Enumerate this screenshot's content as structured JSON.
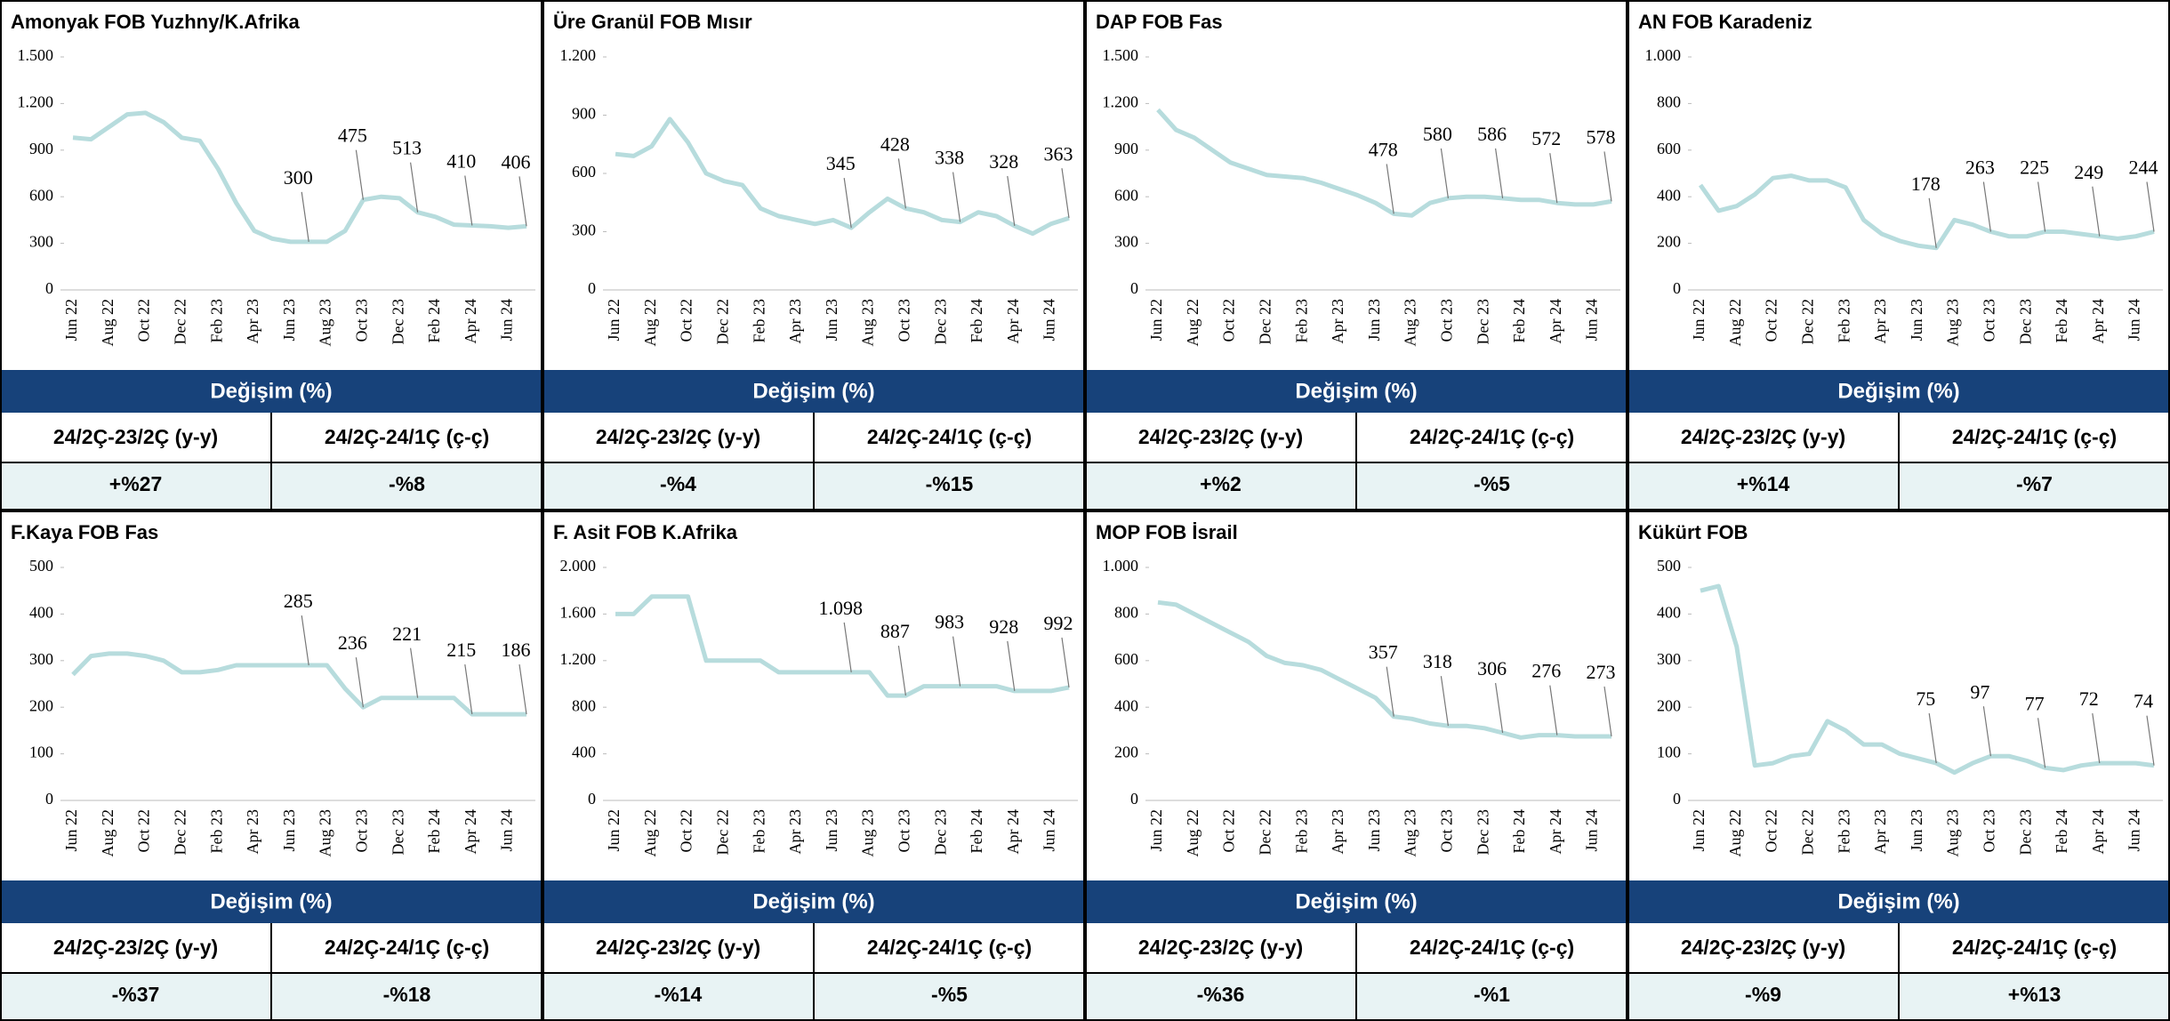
{
  "chart_data": [
    {
      "type": "line",
      "title": "Amonyak FOB Yuzhny/K.Afrika",
      "color": "#b7dcdd",
      "categories": [
        "Jun 22",
        null,
        "Aug 22",
        null,
        "Oct 22",
        null,
        "Dec 22",
        null,
        "Feb 23",
        null,
        "Apr 23",
        null,
        "Jun 23",
        null,
        "Aug 23",
        null,
        "Oct 23",
        null,
        "Dec 23",
        null,
        "Feb 24",
        null,
        "Apr 24",
        null,
        "Jun 24",
        null
      ],
      "values": [
        980,
        970,
        1050,
        1130,
        1140,
        1080,
        980,
        960,
        780,
        560,
        380,
        330,
        310,
        310,
        310,
        380,
        580,
        600,
        590,
        500,
        470,
        420,
        415,
        410,
        400,
        410
      ],
      "ylim": [
        0,
        1500
      ],
      "yticks": [
        0,
        300,
        600,
        900,
        {
          "value": 1200,
          "label": "1.200"
        },
        {
          "value": 1500,
          "label": "1.500"
        }
      ],
      "annotations": [
        "300",
        "475",
        "513",
        "410",
        "406"
      ],
      "table": {
        "header": "Değişim (%)",
        "columns": [
          "24/2Ç-23/2Ç (y-y)",
          "24/2Ç-24/1Ç (ç-ç)"
        ],
        "values": [
          "+%27",
          "-%8"
        ]
      }
    },
    {
      "type": "line",
      "title": "Üre Granül FOB Mısır",
      "color": "#b7dcdd",
      "categories": [
        "Jun 22",
        null,
        "Aug 22",
        null,
        "Oct 22",
        null,
        "Dec 22",
        null,
        "Feb 23",
        null,
        "Apr 23",
        null,
        "Jun 23",
        null,
        "Aug 23",
        null,
        "Oct 23",
        null,
        "Dec 23",
        null,
        "Feb 24",
        null,
        "Apr 24",
        null,
        "Jun 24",
        null
      ],
      "values": [
        700,
        690,
        740,
        880,
        760,
        600,
        560,
        540,
        420,
        380,
        360,
        340,
        360,
        320,
        400,
        470,
        420,
        400,
        360,
        350,
        400,
        380,
        330,
        290,
        340,
        370
      ],
      "ylim": [
        0,
        1200
      ],
      "yticks": [
        0,
        300,
        600,
        900,
        {
          "value": 1200,
          "label": "1.200"
        }
      ],
      "annotations": [
        "345",
        "428",
        "338",
        "328",
        "363"
      ],
      "table": {
        "header": "Değişim (%)",
        "columns": [
          "24/2Ç-23/2Ç (y-y)",
          "24/2Ç-24/1Ç (ç-ç)"
        ],
        "values": [
          "-%4",
          "-%15"
        ]
      }
    },
    {
      "type": "line",
      "title": "DAP FOB Fas",
      "color": "#b7dcdd",
      "categories": [
        "Jun 22",
        null,
        "Aug 22",
        null,
        "Oct 22",
        null,
        "Dec 22",
        null,
        "Feb 23",
        null,
        "Apr 23",
        null,
        "Jun 23",
        null,
        "Aug 23",
        null,
        "Oct 23",
        null,
        "Dec 23",
        null,
        "Feb 24",
        null,
        "Apr 24",
        null,
        "Jun 24",
        null
      ],
      "values": [
        1160,
        1030,
        980,
        900,
        820,
        780,
        740,
        730,
        720,
        690,
        650,
        610,
        560,
        490,
        480,
        560,
        590,
        600,
        600,
        590,
        580,
        580,
        560,
        550,
        550,
        570
      ],
      "ylim": [
        0,
        1500
      ],
      "yticks": [
        0,
        300,
        600,
        900,
        {
          "value": 1200,
          "label": "1.200"
        },
        {
          "value": 1500,
          "label": "1.500"
        }
      ],
      "annotations": [
        "478",
        "580",
        "586",
        "572",
        "578"
      ],
      "table": {
        "header": "Değişim (%)",
        "columns": [
          "24/2Ç-23/2Ç (y-y)",
          "24/2Ç-24/1Ç (ç-ç)"
        ],
        "values": [
          "+%2",
          "-%5"
        ]
      }
    },
    {
      "type": "line",
      "title": "AN FOB Karadeniz",
      "color": "#b7dcdd",
      "categories": [
        "Jun 22",
        null,
        "Aug 22",
        null,
        "Oct 22",
        null,
        "Dec 22",
        null,
        "Feb 23",
        null,
        "Apr 23",
        null,
        "Jun 23",
        null,
        "Aug 23",
        null,
        "Oct 23",
        null,
        "Dec 23",
        null,
        "Feb 24",
        null,
        "Apr 24",
        null,
        "Jun 24",
        null
      ],
      "values": [
        450,
        340,
        360,
        410,
        480,
        490,
        470,
        470,
        440,
        300,
        240,
        210,
        190,
        180,
        300,
        280,
        250,
        230,
        230,
        250,
        250,
        240,
        230,
        220,
        230,
        250
      ],
      "ylim": [
        0,
        1000
      ],
      "yticks": [
        0,
        200,
        400,
        600,
        800,
        {
          "value": 1000,
          "label": "1.000"
        }
      ],
      "annotations": [
        "178",
        "263",
        "225",
        "249",
        "244"
      ],
      "table": {
        "header": "Değişim (%)",
        "columns": [
          "24/2Ç-23/2Ç (y-y)",
          "24/2Ç-24/1Ç (ç-ç)"
        ],
        "values": [
          "+%14",
          "-%7"
        ]
      }
    },
    {
      "type": "line",
      "title": "F.Kaya FOB Fas",
      "color": "#b7dcdd",
      "categories": [
        "Jun 22",
        null,
        "Aug 22",
        null,
        "Oct 22",
        null,
        "Dec 22",
        null,
        "Feb 23",
        null,
        "Apr 23",
        null,
        "Jun 23",
        null,
        "Aug 23",
        null,
        "Oct 23",
        null,
        "Dec 23",
        null,
        "Feb 24",
        null,
        "Apr 24",
        null,
        "Jun 24",
        null
      ],
      "values": [
        270,
        310,
        315,
        315,
        310,
        300,
        275,
        275,
        280,
        290,
        290,
        290,
        290,
        290,
        290,
        240,
        200,
        220,
        220,
        220,
        220,
        220,
        185,
        185,
        185,
        185
      ],
      "ylim": [
        0,
        500
      ],
      "yticks": [
        0,
        100,
        200,
        300,
        400,
        500
      ],
      "annotations": [
        "285",
        "236",
        "221",
        "215",
        "186"
      ],
      "table": {
        "header": "Değişim (%)",
        "columns": [
          "24/2Ç-23/2Ç (y-y)",
          "24/2Ç-24/1Ç (ç-ç)"
        ],
        "values": [
          "-%37",
          "-%18"
        ]
      }
    },
    {
      "type": "line",
      "title": "F. Asit FOB K.Afrika",
      "color": "#b7dcdd",
      "categories": [
        "Jun 22",
        null,
        "Aug 22",
        null,
        "Oct 22",
        null,
        "Dec 22",
        null,
        "Feb 23",
        null,
        "Apr 23",
        null,
        "Jun 23",
        null,
        "Aug 23",
        null,
        "Oct 23",
        null,
        "Dec 23",
        null,
        "Feb 24",
        null,
        "Apr 24",
        null,
        "Jun 24",
        null
      ],
      "values": [
        1600,
        1600,
        1750,
        1750,
        1750,
        1200,
        1200,
        1200,
        1200,
        1100,
        1100,
        1100,
        1100,
        1100,
        1100,
        900,
        900,
        980,
        980,
        980,
        980,
        980,
        940,
        940,
        940,
        970
      ],
      "ylim": [
        0,
        2000
      ],
      "yticks": [
        0,
        400,
        800,
        {
          "value": 1200,
          "label": "1.200"
        },
        {
          "value": 1600,
          "label": "1.600"
        },
        {
          "value": 2000,
          "label": "2.000"
        }
      ],
      "annotations": [
        "1.098",
        "887",
        "983",
        "928",
        "992"
      ],
      "table": {
        "header": "Değişim (%)",
        "columns": [
          "24/2Ç-23/2Ç (y-y)",
          "24/2Ç-24/1Ç (ç-ç)"
        ],
        "values": [
          "-%14",
          "-%5"
        ]
      }
    },
    {
      "type": "line",
      "title": "MOP FOB İsrail",
      "color": "#b7dcdd",
      "categories": [
        "Jun 22",
        null,
        "Aug 22",
        null,
        "Oct 22",
        null,
        "Dec 22",
        null,
        "Feb 23",
        null,
        "Apr 23",
        null,
        "Jun 23",
        null,
        "Aug 23",
        null,
        "Oct 23",
        null,
        "Dec 23",
        null,
        "Feb 24",
        null,
        "Apr 24",
        null,
        "Jun 24",
        null
      ],
      "values": [
        850,
        840,
        800,
        760,
        720,
        680,
        620,
        590,
        580,
        560,
        520,
        480,
        440,
        360,
        350,
        330,
        320,
        320,
        310,
        290,
        270,
        280,
        280,
        275,
        275,
        275
      ],
      "ylim": [
        0,
        1000
      ],
      "yticks": [
        0,
        200,
        400,
        600,
        800,
        {
          "value": 1000,
          "label": "1.000"
        }
      ],
      "annotations": [
        "357",
        "318",
        "306",
        "276",
        "273"
      ],
      "table": {
        "header": "Değişim (%)",
        "columns": [
          "24/2Ç-23/2Ç (y-y)",
          "24/2Ç-24/1Ç (ç-ç)"
        ],
        "values": [
          "-%36",
          "-%1"
        ]
      }
    },
    {
      "type": "line",
      "title": "Kükürt FOB",
      "color": "#b7dcdd",
      "categories": [
        "Jun 22",
        null,
        "Aug 22",
        null,
        "Oct 22",
        null,
        "Dec 22",
        null,
        "Feb 23",
        null,
        "Apr 23",
        null,
        "Jun 23",
        null,
        "Aug 23",
        null,
        "Oct 23",
        null,
        "Dec 23",
        null,
        "Feb 24",
        null,
        "Apr 24",
        null,
        "Jun 24",
        null
      ],
      "values": [
        450,
        460,
        330,
        75,
        80,
        95,
        100,
        170,
        150,
        120,
        120,
        100,
        90,
        80,
        60,
        80,
        95,
        95,
        85,
        70,
        65,
        75,
        80,
        80,
        80,
        75
      ],
      "ylim": [
        0,
        500
      ],
      "yticks": [
        0,
        100,
        200,
        300,
        400,
        500
      ],
      "annotations": [
        "75",
        "97",
        "77",
        "72",
        "74"
      ],
      "table": {
        "header": "Değişim (%)",
        "columns": [
          "24/2Ç-23/2Ç (y-y)",
          "24/2Ç-24/1Ç (ç-ç)"
        ],
        "values": [
          "-%9",
          "+%13"
        ]
      }
    }
  ]
}
